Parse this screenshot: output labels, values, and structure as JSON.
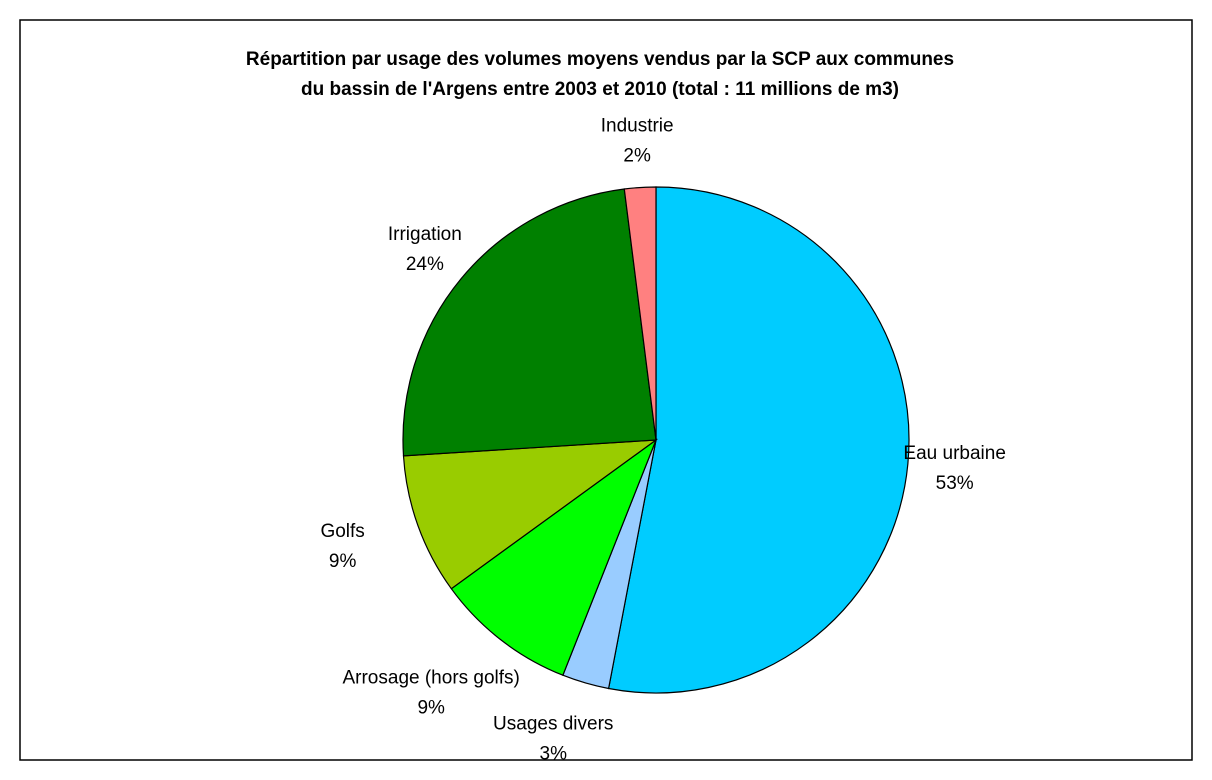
{
  "chart_data": {
    "type": "pie",
    "title": [
      "Répartition par usage des volumes moyens vendus par la SCP aux communes",
      "du bassin de l'Argens entre 2003 et 2010 (total : 11 millions de m3)"
    ],
    "categories": [
      "Eau urbaine",
      "Usages divers",
      "Arrosage (hors golfs)",
      "Golfs",
      "Irrigation",
      "Industrie"
    ],
    "values": [
      53,
      3,
      9,
      9,
      24,
      2
    ],
    "value_labels": [
      "53%",
      "3%",
      "9%",
      "9%",
      "24%",
      "2%"
    ],
    "colors": [
      "#00ccff",
      "#99ccff",
      "#00ff00",
      "#99cc00",
      "#008000",
      "#ff8080"
    ]
  }
}
